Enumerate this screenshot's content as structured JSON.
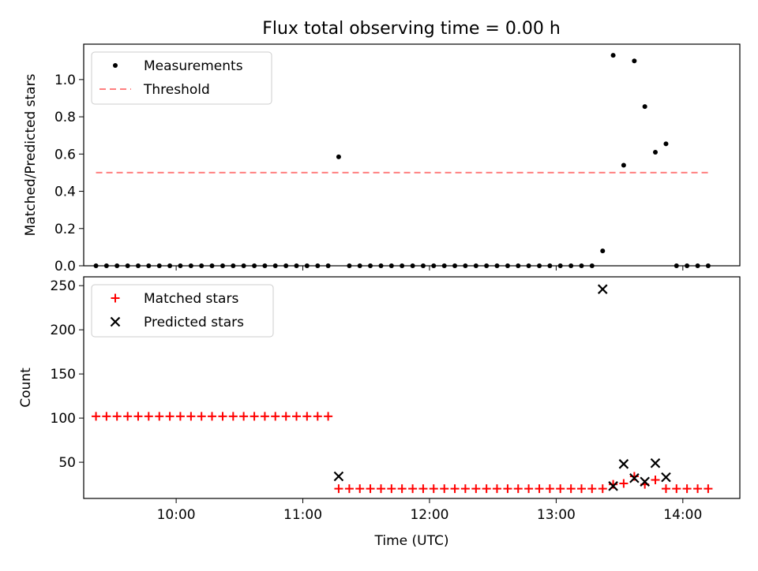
{
  "figure": {
    "title": "Flux total observing time = 0.00 h"
  },
  "chart_data": [
    {
      "type": "scatter",
      "ylabel": "Matched/Predicted stars",
      "ylim": [
        0.0,
        1.19
      ],
      "yticks": [
        0.0,
        0.2,
        0.4,
        0.6,
        0.8,
        1.0
      ],
      "ytick_labels": [
        "0.0",
        "0.2",
        "0.4",
        "0.6",
        "0.8",
        "1.0"
      ],
      "xlim": [
        9.27,
        14.45
      ],
      "show_xtick_labels": false,
      "legend_position": "top-left",
      "series": [
        {
          "name": "Measurements",
          "marker": "dot",
          "color": "#000000",
          "points": [
            [
              9.367,
              0
            ],
            [
              9.45,
              0
            ],
            [
              9.533,
              0
            ],
            [
              9.617,
              0
            ],
            [
              9.7,
              0
            ],
            [
              9.783,
              0
            ],
            [
              9.867,
              0
            ],
            [
              9.95,
              0
            ],
            [
              10.033,
              0
            ],
            [
              10.117,
              0
            ],
            [
              10.2,
              0
            ],
            [
              10.283,
              0
            ],
            [
              10.367,
              0
            ],
            [
              10.45,
              0
            ],
            [
              10.533,
              0
            ],
            [
              10.617,
              0
            ],
            [
              10.7,
              0
            ],
            [
              10.783,
              0
            ],
            [
              10.867,
              0
            ],
            [
              10.95,
              0
            ],
            [
              11.033,
              0
            ],
            [
              11.117,
              0
            ],
            [
              11.2,
              0
            ],
            [
              11.283,
              0.585
            ],
            [
              11.367,
              0
            ],
            [
              11.45,
              0
            ],
            [
              11.533,
              0
            ],
            [
              11.617,
              0
            ],
            [
              11.7,
              0
            ],
            [
              11.783,
              0
            ],
            [
              11.867,
              0
            ],
            [
              11.95,
              0
            ],
            [
              12.033,
              0
            ],
            [
              12.117,
              0
            ],
            [
              12.2,
              0
            ],
            [
              12.283,
              0
            ],
            [
              12.367,
              0
            ],
            [
              12.45,
              0
            ],
            [
              12.533,
              0
            ],
            [
              12.617,
              0
            ],
            [
              12.7,
              0
            ],
            [
              12.783,
              0
            ],
            [
              12.867,
              0
            ],
            [
              12.95,
              0
            ],
            [
              13.033,
              0
            ],
            [
              13.117,
              0
            ],
            [
              13.2,
              0
            ],
            [
              13.283,
              0
            ],
            [
              13.367,
              0.08
            ],
            [
              13.45,
              1.13
            ],
            [
              13.533,
              0.54
            ],
            [
              13.617,
              1.1
            ],
            [
              13.7,
              0.855
            ],
            [
              13.783,
              0.61
            ],
            [
              13.867,
              0.655
            ],
            [
              13.95,
              0
            ],
            [
              14.033,
              0
            ],
            [
              14.117,
              0
            ],
            [
              14.2,
              0
            ]
          ]
        },
        {
          "name": "Threshold",
          "line_style": "dashed",
          "color": "#ff7f7f",
          "points": [
            [
              9.367,
              0.5
            ],
            [
              14.2,
              0.5
            ]
          ]
        }
      ]
    },
    {
      "type": "scatter",
      "ylabel": "Count",
      "xlabel": "Time (UTC)",
      "ylim": [
        9,
        260
      ],
      "yticks": [
        50,
        100,
        150,
        200,
        250
      ],
      "ytick_labels": [
        "50",
        "100",
        "150",
        "200",
        "250"
      ],
      "xlim": [
        9.27,
        14.45
      ],
      "xticks": [
        10,
        11,
        12,
        13,
        14
      ],
      "xtick_labels": [
        "10:00",
        "11:00",
        "12:00",
        "13:00",
        "14:00"
      ],
      "legend_position": "top-left",
      "series": [
        {
          "name": "Matched stars",
          "marker": "plus",
          "color": "#ff0000",
          "points": [
            [
              9.367,
              102
            ],
            [
              9.45,
              102
            ],
            [
              9.533,
              102
            ],
            [
              9.617,
              102
            ],
            [
              9.7,
              102
            ],
            [
              9.783,
              102
            ],
            [
              9.867,
              102
            ],
            [
              9.95,
              102
            ],
            [
              10.033,
              102
            ],
            [
              10.117,
              102
            ],
            [
              10.2,
              102
            ],
            [
              10.283,
              102
            ],
            [
              10.367,
              102
            ],
            [
              10.45,
              102
            ],
            [
              10.533,
              102
            ],
            [
              10.617,
              102
            ],
            [
              10.7,
              102
            ],
            [
              10.783,
              102
            ],
            [
              10.867,
              102
            ],
            [
              10.95,
              102
            ],
            [
              11.033,
              102
            ],
            [
              11.117,
              102
            ],
            [
              11.2,
              102
            ],
            [
              11.283,
              20
            ],
            [
              11.367,
              20
            ],
            [
              11.45,
              20
            ],
            [
              11.533,
              20
            ],
            [
              11.617,
              20
            ],
            [
              11.7,
              20
            ],
            [
              11.783,
              20
            ],
            [
              11.867,
              20
            ],
            [
              11.95,
              20
            ],
            [
              12.033,
              20
            ],
            [
              12.117,
              20
            ],
            [
              12.2,
              20
            ],
            [
              12.283,
              20
            ],
            [
              12.367,
              20
            ],
            [
              12.45,
              20
            ],
            [
              12.533,
              20
            ],
            [
              12.617,
              20
            ],
            [
              12.7,
              20
            ],
            [
              12.783,
              20
            ],
            [
              12.867,
              20
            ],
            [
              12.95,
              20
            ],
            [
              13.033,
              20
            ],
            [
              13.117,
              20
            ],
            [
              13.2,
              20
            ],
            [
              13.283,
              20
            ],
            [
              13.367,
              20
            ],
            [
              13.45,
              25
            ],
            [
              13.533,
              26
            ],
            [
              13.617,
              34
            ],
            [
              13.7,
              25
            ],
            [
              13.783,
              30
            ],
            [
              13.867,
              20
            ],
            [
              13.95,
              20
            ],
            [
              14.033,
              20
            ],
            [
              14.117,
              20
            ],
            [
              14.2,
              20
            ]
          ]
        },
        {
          "name": "Predicted stars",
          "marker": "x",
          "color": "#000000",
          "points": [
            [
              11.283,
              34
            ],
            [
              13.367,
              246
            ],
            [
              13.45,
              23
            ],
            [
              13.533,
              48
            ],
            [
              13.617,
              32
            ],
            [
              13.7,
              28
            ],
            [
              13.783,
              49
            ],
            [
              13.867,
              33
            ]
          ]
        }
      ]
    }
  ]
}
